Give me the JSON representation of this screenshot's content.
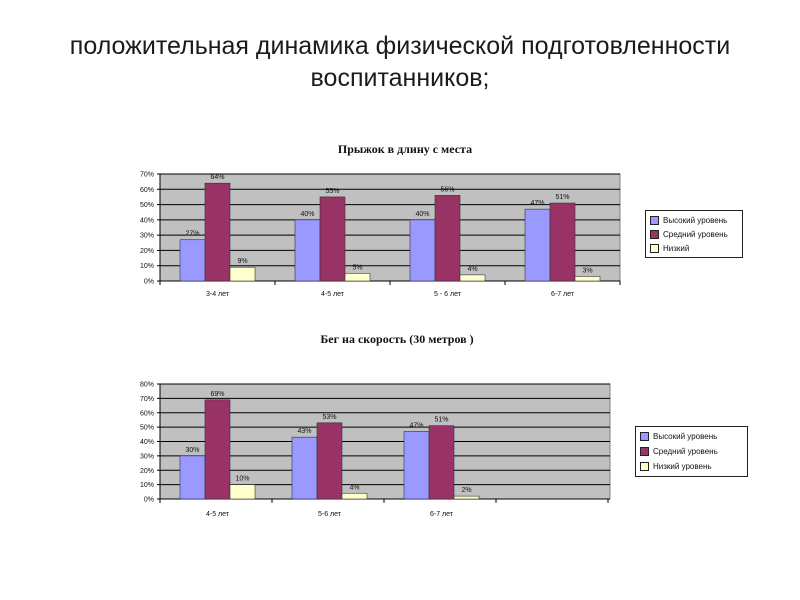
{
  "slide": {
    "title_line1": "положительная динамика физической подготовленности",
    "title_line2": "воспитанников;"
  },
  "colors": {
    "high": "#9999ff",
    "medium": "#993366",
    "low": "#ffffcc",
    "plot_bg": "#c0c0c0"
  },
  "chart_data": [
    {
      "type": "bar",
      "title": "Прыжок в длину с места",
      "categories": [
        "3-4 лет",
        "4-5 лет",
        "5 - 6 лет",
        "6-7 лет"
      ],
      "series": [
        {
          "name": "Высокий уровень",
          "values": [
            27,
            40,
            40,
            47
          ],
          "labels": [
            "27%",
            "40%",
            "40%",
            "47%"
          ]
        },
        {
          "name": "Средний уровень",
          "values": [
            64,
            55,
            56,
            51
          ],
          "labels": [
            "64%",
            "55%",
            "56%",
            "51%"
          ]
        },
        {
          "name": "Низкий",
          "values": [
            9,
            5,
            4,
            3
          ],
          "labels": [
            "9%",
            "5%",
            "4%",
            "3%"
          ]
        }
      ],
      "yticks": [
        "0%",
        "10%",
        "20%",
        "30%",
        "40%",
        "50%",
        "60%",
        "70%"
      ],
      "ylim": [
        0,
        70
      ],
      "grid": true,
      "legend": "right"
    },
    {
      "type": "bar",
      "title": "Бег на скорость (30 метров )",
      "categories": [
        "4-5 лет",
        "5-6 лет",
        "6-7 лет",
        ""
      ],
      "series": [
        {
          "name": "Высокий уровень",
          "values": [
            30,
            43,
            47,
            null
          ],
          "labels": [
            "30%",
            "43%",
            "47%",
            ""
          ]
        },
        {
          "name": "Средний уровень",
          "values": [
            69,
            53,
            51,
            null
          ],
          "labels": [
            "69%",
            "53%",
            "51%",
            ""
          ]
        },
        {
          "name": "Низкий уровень",
          "values": [
            10,
            4,
            2,
            null
          ],
          "labels": [
            "10%",
            "4%",
            "2%",
            ""
          ]
        }
      ],
      "yticks": [
        "0%",
        "10%",
        "20%",
        "30%",
        "40%",
        "50%",
        "60%",
        "70%",
        "80%"
      ],
      "ylim": [
        0,
        80
      ],
      "grid": true,
      "legend": "right"
    }
  ]
}
